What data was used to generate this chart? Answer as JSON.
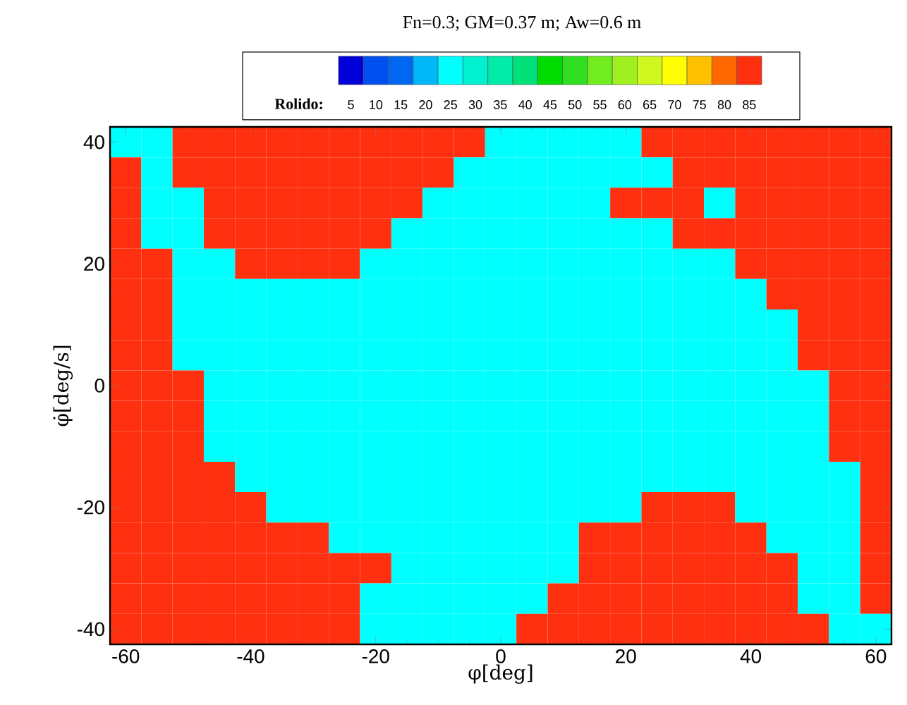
{
  "chart_data": {
    "type": "heatmap",
    "title": "Fn=0.3;  GM=0.37 m; Aw=0.6 m",
    "xlabel": "φ[deg]",
    "ylabel": "φ̇[deg/s]",
    "clabel": "Rolido:",
    "categories": [
      "-60",
      null,
      null,
      null,
      "-40",
      null,
      null,
      null,
      "-20",
      null,
      null,
      null,
      "0",
      null,
      null,
      null,
      "20",
      null,
      null,
      null,
      "40",
      null,
      null,
      null,
      "60"
    ],
    "y_categories": [
      "40",
      null,
      null,
      null,
      "20",
      null,
      null,
      null,
      "0",
      null,
      null,
      null,
      "-20",
      null,
      null,
      null,
      "-40"
    ],
    "clim": [
      2.5,
      87.5
    ],
    "cticks": [
      5,
      10,
      15,
      20,
      25,
      30,
      35,
      40,
      45,
      50,
      55,
      60,
      65,
      70,
      75,
      80,
      85
    ],
    "colors": [
      "#0000d8",
      "#0050f0",
      "#0068f0",
      "#00b8f8",
      "#00ffff",
      "#00f0d0",
      "#00eca8",
      "#00e078",
      "#00dc00",
      "#30e020",
      "#70ec20",
      "#a0f020",
      "#d0f820",
      "#ffff00",
      "#ffc000",
      "#ff6800",
      "#ff3010"
    ],
    "cells": [
      [
        25,
        25,
        85,
        85,
        85,
        85,
        85,
        85,
        85,
        85,
        85,
        85,
        25,
        25,
        25,
        25,
        25,
        85,
        85,
        85,
        85,
        85,
        85,
        85,
        85
      ],
      [
        85,
        25,
        85,
        85,
        85,
        85,
        85,
        85,
        85,
        85,
        85,
        25,
        25,
        25,
        25,
        25,
        25,
        25,
        85,
        85,
        85,
        85,
        85,
        85,
        85
      ],
      [
        85,
        25,
        25,
        85,
        85,
        85,
        85,
        85,
        85,
        85,
        25,
        25,
        25,
        25,
        25,
        25,
        85,
        85,
        85,
        25,
        85,
        85,
        85,
        85,
        85
      ],
      [
        85,
        25,
        25,
        85,
        85,
        85,
        85,
        85,
        85,
        25,
        25,
        25,
        25,
        25,
        25,
        25,
        25,
        25,
        85,
        85,
        85,
        85,
        85,
        85,
        85
      ],
      [
        85,
        85,
        25,
        25,
        85,
        85,
        85,
        85,
        25,
        25,
        25,
        25,
        25,
        25,
        25,
        25,
        25,
        25,
        25,
        25,
        85,
        85,
        85,
        85,
        85
      ],
      [
        85,
        85,
        25,
        25,
        25,
        25,
        25,
        25,
        25,
        25,
        25,
        25,
        25,
        25,
        25,
        25,
        25,
        25,
        25,
        25,
        25,
        85,
        85,
        85,
        85
      ],
      [
        85,
        85,
        25,
        25,
        25,
        25,
        25,
        25,
        25,
        25,
        25,
        25,
        25,
        25,
        25,
        25,
        25,
        25,
        25,
        25,
        25,
        25,
        85,
        85,
        85
      ],
      [
        85,
        85,
        25,
        25,
        25,
        25,
        25,
        25,
        25,
        25,
        25,
        25,
        25,
        25,
        25,
        25,
        25,
        25,
        25,
        25,
        25,
        25,
        85,
        85,
        85
      ],
      [
        85,
        85,
        85,
        25,
        25,
        25,
        25,
        25,
        25,
        25,
        25,
        25,
        25,
        25,
        25,
        25,
        25,
        25,
        25,
        25,
        25,
        25,
        25,
        85,
        85
      ],
      [
        85,
        85,
        85,
        25,
        25,
        25,
        25,
        25,
        25,
        25,
        25,
        25,
        25,
        25,
        25,
        25,
        25,
        25,
        25,
        25,
        25,
        25,
        25,
        85,
        85
      ],
      [
        85,
        85,
        85,
        25,
        25,
        25,
        25,
        25,
        25,
        25,
        25,
        25,
        25,
        25,
        25,
        25,
        25,
        25,
        25,
        25,
        25,
        25,
        25,
        85,
        85
      ],
      [
        85,
        85,
        85,
        85,
        25,
        25,
        25,
        25,
        25,
        25,
        25,
        25,
        25,
        25,
        25,
        25,
        25,
        25,
        25,
        25,
        25,
        25,
        25,
        25,
        85
      ],
      [
        85,
        85,
        85,
        85,
        85,
        25,
        25,
        25,
        25,
        25,
        25,
        25,
        25,
        25,
        25,
        25,
        25,
        85,
        85,
        85,
        25,
        25,
        25,
        25,
        85
      ],
      [
        85,
        85,
        85,
        85,
        85,
        85,
        85,
        25,
        25,
        25,
        25,
        25,
        25,
        25,
        25,
        85,
        85,
        85,
        85,
        85,
        85,
        25,
        25,
        25,
        85
      ],
      [
        85,
        85,
        85,
        85,
        85,
        85,
        85,
        85,
        85,
        25,
        25,
        25,
        25,
        25,
        25,
        85,
        85,
        85,
        85,
        85,
        85,
        85,
        25,
        25,
        85
      ],
      [
        85,
        85,
        85,
        85,
        85,
        85,
        85,
        85,
        25,
        25,
        25,
        25,
        25,
        25,
        85,
        85,
        85,
        85,
        85,
        85,
        85,
        85,
        25,
        25,
        85
      ],
      [
        85,
        85,
        85,
        85,
        85,
        85,
        85,
        85,
        25,
        25,
        25,
        25,
        25,
        85,
        85,
        85,
        85,
        85,
        85,
        85,
        85,
        85,
        85,
        25,
        25
      ]
    ]
  }
}
